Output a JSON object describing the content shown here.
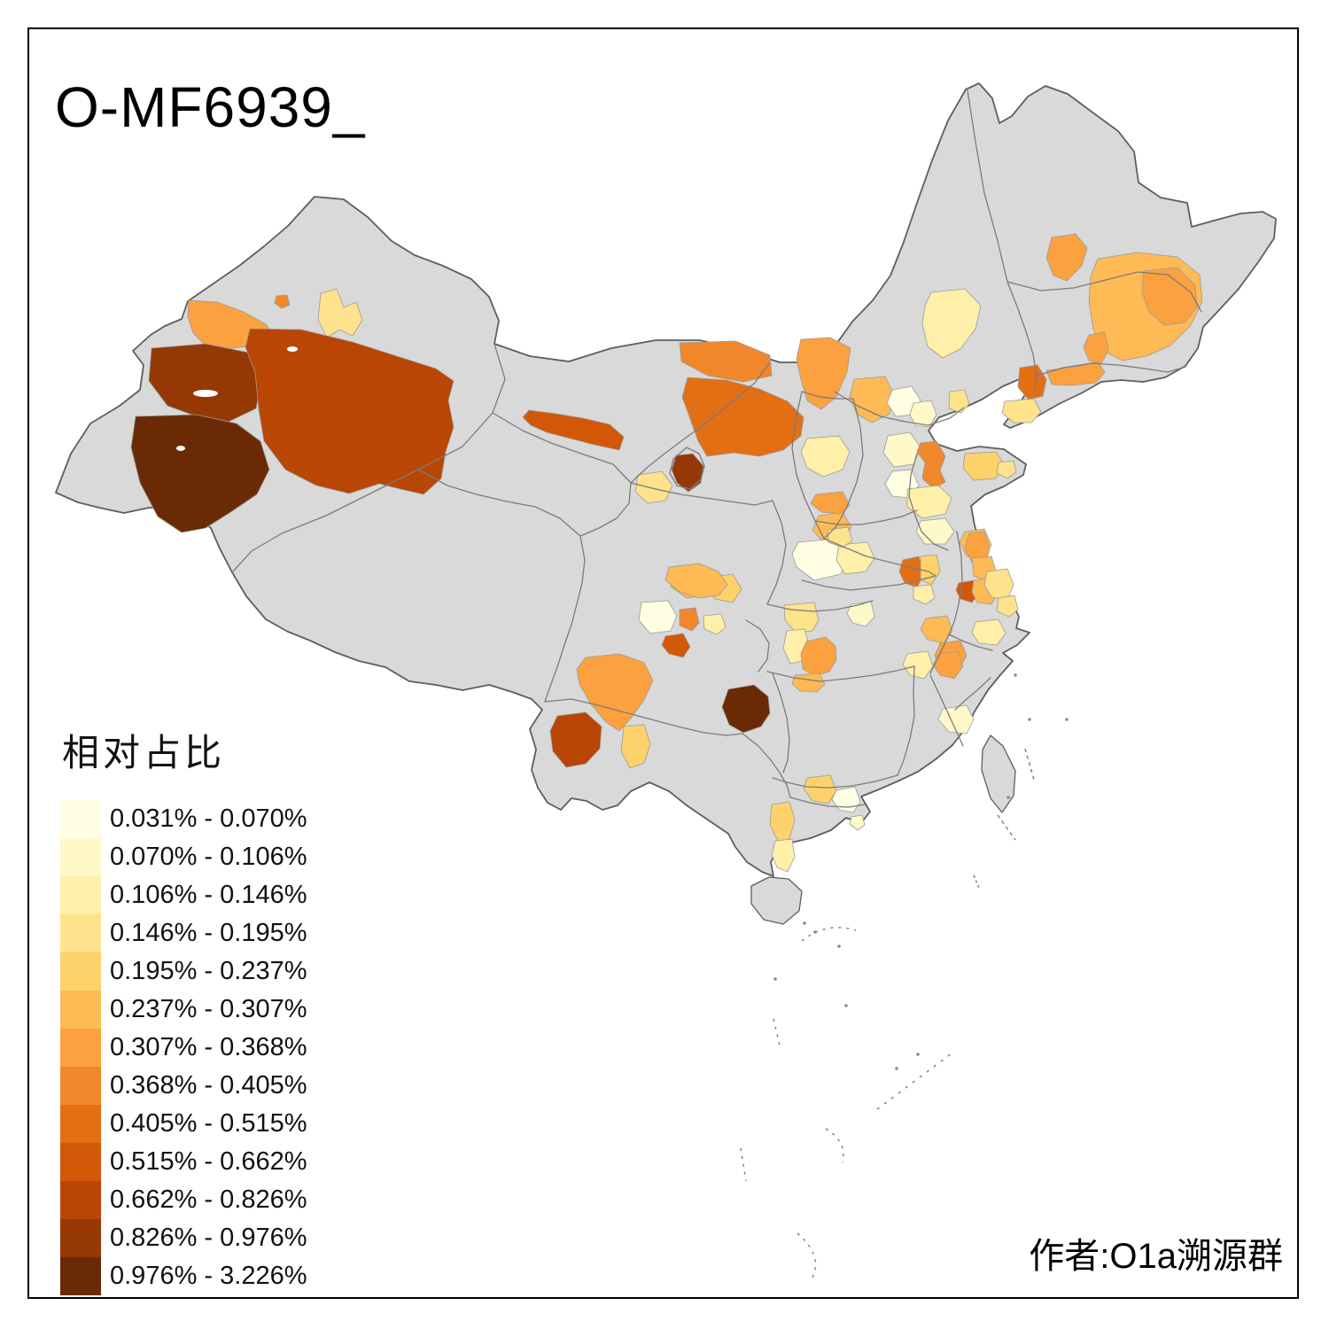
{
  "title": "O-MF6939_",
  "author": "作者:O1a溯源群",
  "legend": {
    "title": "相对占比",
    "classes": [
      {
        "range": "0.031% - 0.070%",
        "color": "#FFFFE3"
      },
      {
        "range": "0.070% - 0.106%",
        "color": "#FFF9C9"
      },
      {
        "range": "0.106% - 0.146%",
        "color": "#FEF0A9"
      },
      {
        "range": "0.146% - 0.195%",
        "color": "#FEE28C"
      },
      {
        "range": "0.195% - 0.237%",
        "color": "#FDD26B"
      },
      {
        "range": "0.237% - 0.307%",
        "color": "#FDBA55"
      },
      {
        "range": "0.307% - 0.368%",
        "color": "#FCA140"
      },
      {
        "range": "0.368% - 0.405%",
        "color": "#F1872B"
      },
      {
        "range": "0.405% - 0.515%",
        "color": "#E36F15"
      },
      {
        "range": "0.515% - 0.662%",
        "color": "#D25808"
      },
      {
        "range": "0.662% - 0.826%",
        "color": "#B94604"
      },
      {
        "range": "0.826% - 0.976%",
        "color": "#963804"
      },
      {
        "range": "0.976% - 3.226%",
        "color": "#6B2A06"
      }
    ]
  },
  "map": {
    "background": "#FFFFFF",
    "land_color": "#D9D9D9",
    "province_border_color": "#7B7B7B",
    "outline_color": "#5E5E5E",
    "region_border_color": "#9A9A9A",
    "regions": [
      {
        "id": "ili-valley",
        "class_index": 7
      },
      {
        "id": "altay",
        "class_index": 4
      },
      {
        "id": "karamay",
        "class_index": 8
      },
      {
        "id": "kashgar-kizilsu",
        "class_index": 12
      },
      {
        "id": "hotan",
        "class_index": 13
      },
      {
        "id": "aksu-bayingol",
        "class_index": 11
      },
      {
        "id": "hexi-corridor",
        "class_index": 10
      },
      {
        "id": "inner-mongolia-north-band",
        "class_index": 8
      },
      {
        "id": "inner-mongolia-west",
        "class_index": 9
      },
      {
        "id": "shizuishan-ningxia",
        "class_index": 12
      },
      {
        "id": "xining-area",
        "class_index": 4
      },
      {
        "id": "gannan-west",
        "class_index": 6
      },
      {
        "id": "gannan-east",
        "class_index": 5
      },
      {
        "id": "aba-area",
        "class_index": 1
      },
      {
        "id": "mianyang-spot",
        "class_index": 8
      },
      {
        "id": "bazhong-spot",
        "class_index": 3
      },
      {
        "id": "ulanqab-band",
        "class_index": 7
      },
      {
        "id": "hohhot-baotou",
        "class_index": 6
      },
      {
        "id": "beijing-nw",
        "class_index": 1
      },
      {
        "id": "beijing-se",
        "class_index": 2
      },
      {
        "id": "tangshan",
        "class_index": 4
      },
      {
        "id": "baoding-area",
        "class_index": 2
      },
      {
        "id": "shijiazhuang-area",
        "class_index": 1
      },
      {
        "id": "taiyuan-area",
        "class_index": 3
      },
      {
        "id": "luoyang-area",
        "class_index": 6
      },
      {
        "id": "jinan-zibo",
        "class_index": 8
      },
      {
        "id": "shandong-peninsula-w",
        "class_index": 5
      },
      {
        "id": "shandong-peninsula-e",
        "class_index": 4
      },
      {
        "id": "shandong-west-cluster",
        "class_index": 3
      },
      {
        "id": "shandong-south",
        "class_index": 2
      },
      {
        "id": "linyi-area",
        "class_index": 6
      },
      {
        "id": "jiaozuo-xinxiang",
        "class_index": 7
      },
      {
        "id": "xian-area",
        "class_index": 1
      },
      {
        "id": "henan-east-pale",
        "class_index": 3
      },
      {
        "id": "henan-mid-pale",
        "class_index": 4
      },
      {
        "id": "fuyang-area",
        "class_index": 9
      },
      {
        "id": "bozhou-area",
        "class_index": 5
      },
      {
        "id": "huaibei-pale",
        "class_index": 3
      },
      {
        "id": "xuzhou-area",
        "class_index": 7
      },
      {
        "id": "huaian-area",
        "class_index": 6
      },
      {
        "id": "chuzhou-dark",
        "class_index": 10
      },
      {
        "id": "nanjing-ring",
        "class_index": 6
      },
      {
        "id": "yancheng-coast",
        "class_index": 4
      },
      {
        "id": "shanghai-area",
        "class_index": 4
      },
      {
        "id": "jingmen-cream",
        "class_index": 2
      },
      {
        "id": "jingzhou-band-n",
        "class_index": 4
      },
      {
        "id": "jingzhou-band-s",
        "class_index": 3
      },
      {
        "id": "changde-orange",
        "class_index": 7
      },
      {
        "id": "yiyang-orange",
        "class_index": 6
      },
      {
        "id": "anqing-area",
        "class_index": 6
      },
      {
        "id": "xuancheng-area",
        "class_index": 7
      },
      {
        "id": "hangzhou-pale",
        "class_index": 3
      },
      {
        "id": "nanchang-pale",
        "class_index": 3
      },
      {
        "id": "shangrao-area",
        "class_index": 7
      },
      {
        "id": "fuzhou-pale",
        "class_index": 2
      },
      {
        "id": "chengdu-cluster",
        "class_index": 6
      },
      {
        "id": "zigong-dark",
        "class_index": 10
      },
      {
        "id": "liangshan",
        "class_index": 7
      },
      {
        "id": "liangshan-south",
        "class_index": 5
      },
      {
        "id": "dali-chuxiong",
        "class_index": 11
      },
      {
        "id": "qiannan-dark",
        "class_index": 13
      },
      {
        "id": "guilin-area",
        "class_index": 5
      },
      {
        "id": "hechi-band",
        "class_index": 5
      },
      {
        "id": "nanning-band",
        "class_index": 3
      },
      {
        "id": "hezhou-cream",
        "class_index": 1
      },
      {
        "id": "pearl-delta-spot",
        "class_index": 2
      },
      {
        "id": "qiqihar-area",
        "class_index": 7
      },
      {
        "id": "harbin-jilin",
        "class_index": 6
      },
      {
        "id": "jilin-city-lobe",
        "class_index": 7
      },
      {
        "id": "baicheng-pale",
        "class_index": 3
      },
      {
        "id": "changchun-west",
        "class_index": 7
      },
      {
        "id": "shenyang-dark",
        "class_index": 9
      },
      {
        "id": "liaoning-band",
        "class_index": 7
      },
      {
        "id": "dalian-pale",
        "class_index": 4
      }
    ]
  }
}
